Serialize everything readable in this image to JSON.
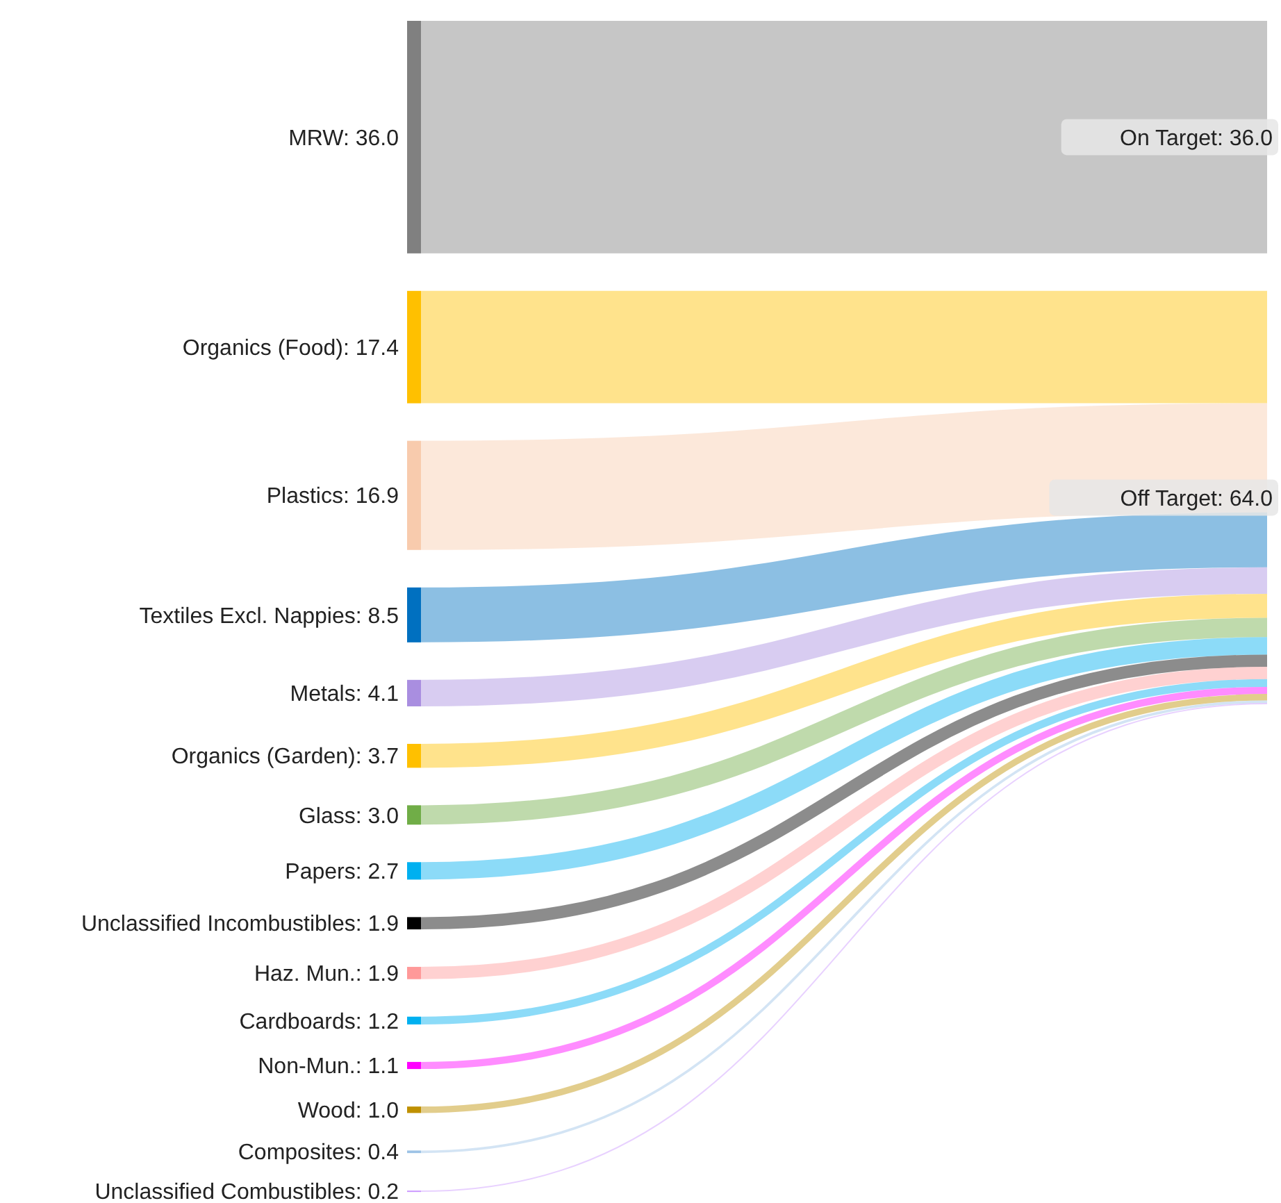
{
  "chart_data": {
    "type": "other",
    "categories": [
      "MRW",
      "Organics (Food)",
      "Plastics",
      "Textiles Excl. Nappies",
      "Metals",
      "Organics (Garden)",
      "Glass",
      "Papers",
      "Unclassified Incombustibles",
      "Haz. Mun.",
      "Cardboards",
      "Non-Mun.",
      "Wood",
      "Composites",
      "Unclassified Combustibles"
    ],
    "colors": [
      "#808080",
      "#ffc000",
      "#f8cbad",
      "#0070c0",
      "#a98ee0",
      "#ffc000",
      "#70ad47",
      "#00b0f0",
      "#000000",
      "#ff9999",
      "#00b0f0",
      "#ff00ff",
      "#bf9000",
      "#9dc3e6",
      "#cc99ff"
    ],
    "series": [
      {
        "name": "On Target",
        "values": [
          36.0,
          null,
          null,
          null,
          null,
          null,
          null,
          null,
          null,
          null,
          null,
          null,
          null,
          null,
          null
        ],
        "value_labels": [
          ": 36.0",
          null,
          null,
          null,
          null,
          null,
          null,
          null,
          null,
          null,
          null,
          null,
          null,
          null,
          null
        ]
      },
      {
        "name": "Off Target",
        "values": [
          null,
          17.4,
          16.9,
          8.5,
          4.1,
          3.7,
          3.0,
          2.7,
          1.9,
          1.9,
          1.2,
          1.1,
          1.0,
          0.4,
          0.2
        ],
        "value_labels": [
          null,
          ": 17.4",
          ": 16.9",
          ": 8.5",
          ": 4.1",
          ": 3.7",
          ": 3.0",
          ": 2.7",
          ": 1.9",
          ": 1.9",
          ": 1.2",
          ": 1.1",
          ": 1.0",
          ": 0.4",
          ": 0.2"
        ]
      }
    ],
    "totals": [
      ": 36.0",
      ": 64.0"
    ]
  }
}
